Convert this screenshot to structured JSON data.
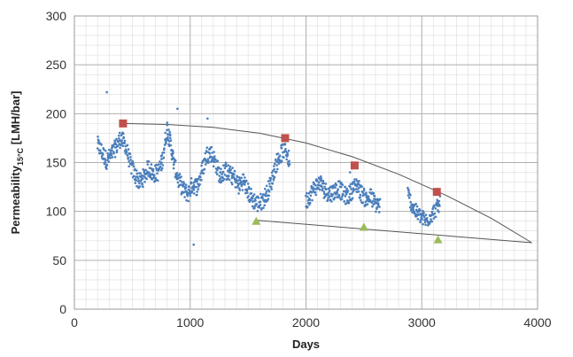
{
  "chart_data": {
    "type": "scatter",
    "xlabel": "Days",
    "ylabel_main": "Permeability",
    "ylabel_sub": "15°C",
    "ylabel_unit": " [LMH/bar]",
    "xlim": [
      0,
      4000
    ],
    "ylim": [
      0,
      300
    ],
    "x_ticks": [
      0,
      1000,
      2000,
      3000,
      4000
    ],
    "y_ticks": [
      0,
      50,
      100,
      150,
      200,
      250,
      300
    ],
    "x_minor_step": 100,
    "y_minor_step": 10,
    "grid": true,
    "legend": "none",
    "colors": {
      "scatter": "#4a7ebb",
      "square_marker": "#c0504d",
      "triangle_marker": "#9bbb59",
      "curve": "#555555",
      "grid_major": "#b0b0b0",
      "grid_minor": "#dcdcdc"
    },
    "scatter_segments": [
      {
        "points": [
          [
            200,
            168
          ],
          [
            240,
            160
          ],
          [
            280,
            152
          ],
          [
            320,
            158
          ],
          [
            360,
            166
          ],
          [
            400,
            175
          ],
          [
            440,
            168
          ],
          [
            480,
            150
          ],
          [
            520,
            138
          ],
          [
            560,
            130
          ],
          [
            600,
            135
          ],
          [
            640,
            145
          ],
          [
            680,
            138
          ],
          [
            720,
            140
          ],
          [
            760,
            152
          ],
          [
            800,
            185
          ],
          [
            830,
            170
          ],
          [
            860,
            148
          ],
          [
            900,
            132
          ],
          [
            940,
            122
          ],
          [
            980,
            118
          ],
          [
            1020,
            128
          ],
          [
            1060,
            125
          ],
          [
            1100,
            140
          ],
          [
            1140,
            158
          ],
          [
            1180,
            160
          ],
          [
            1220,
            150
          ],
          [
            1260,
            135
          ],
          [
            1300,
            142
          ],
          [
            1340,
            138
          ],
          [
            1380,
            135
          ],
          [
            1420,
            126
          ],
          [
            1460,
            132
          ],
          [
            1500,
            120
          ],
          [
            1540,
            112
          ],
          [
            1580,
            108
          ],
          [
            1620,
            110
          ],
          [
            1660,
            118
          ],
          [
            1700,
            130
          ],
          [
            1740,
            148
          ],
          [
            1780,
            158
          ],
          [
            1820,
            165
          ],
          [
            1860,
            150
          ]
        ],
        "spread": 9
      },
      {
        "points": [
          [
            2000,
            110
          ],
          [
            2040,
            118
          ],
          [
            2080,
            125
          ],
          [
            2120,
            130
          ],
          [
            2160,
            122
          ],
          [
            2200,
            118
          ],
          [
            2240,
            120
          ],
          [
            2280,
            124
          ],
          [
            2320,
            118
          ],
          [
            2360,
            115
          ],
          [
            2400,
            122
          ],
          [
            2440,
            128
          ],
          [
            2480,
            118
          ],
          [
            2520,
            112
          ],
          [
            2560,
            115
          ],
          [
            2600,
            108
          ],
          [
            2640,
            106
          ]
        ],
        "spread": 9
      },
      {
        "points": [
          [
            2880,
            118
          ],
          [
            2920,
            105
          ],
          [
            2960,
            98
          ],
          [
            3000,
            94
          ],
          [
            3040,
            90
          ],
          [
            3080,
            96
          ],
          [
            3120,
            102
          ],
          [
            3160,
            108
          ]
        ],
        "spread": 8
      }
    ],
    "scatter_outliers": [
      [
        280,
        222
      ],
      [
        1030,
        66
      ],
      [
        890,
        205
      ],
      [
        1150,
        195
      ],
      [
        2380,
        140
      ]
    ],
    "upper_markers": [
      [
        420,
        190
      ],
      [
        1820,
        175
      ],
      [
        2420,
        147
      ],
      [
        3130,
        120
      ]
    ],
    "lower_markers": [
      [
        1570,
        90
      ],
      [
        2500,
        84
      ],
      [
        3140,
        71
      ]
    ],
    "upper_curve": [
      [
        420,
        190
      ],
      [
        800,
        189
      ],
      [
        1200,
        186
      ],
      [
        1600,
        180
      ],
      [
        2000,
        170
      ],
      [
        2400,
        156
      ],
      [
        2800,
        138
      ],
      [
        3200,
        117
      ],
      [
        3600,
        93
      ],
      [
        3950,
        68
      ]
    ],
    "lower_line": [
      [
        1570,
        91
      ],
      [
        3950,
        68
      ]
    ]
  }
}
